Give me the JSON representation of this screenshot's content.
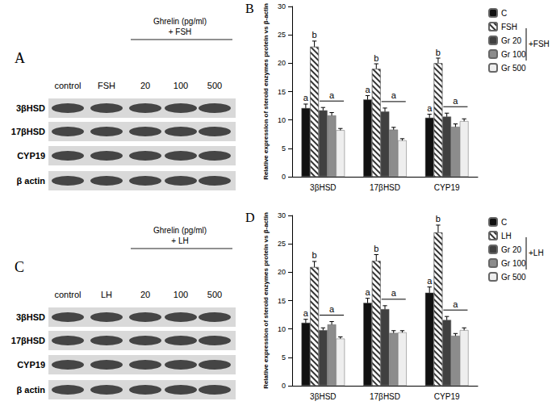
{
  "blots": [
    {
      "label": "A",
      "header": [
        "Ghrelin (pg/ml)",
        "+ FSH"
      ],
      "lanes": [
        "control",
        "FSH",
        "20",
        "100",
        "500"
      ],
      "rows": [
        "3βHSD",
        "17βHSD",
        "CYP19",
        "β actin"
      ]
    },
    {
      "label": "C",
      "header": [
        "Ghrelin (pg/ml)",
        "+ LH"
      ],
      "lanes": [
        "control",
        "LH",
        "20",
        "100",
        "500"
      ],
      "rows": [
        "3βHSD",
        "17βHSD",
        "CYP19",
        "β actin"
      ]
    }
  ],
  "chart_data": [
    {
      "type": "bar",
      "label": "B",
      "y_label": "Relative expression of steroid enzymes protein vs β-actin",
      "categories": [
        "3βHSD",
        "17βHSD",
        "CYP19"
      ],
      "ylim": [
        0,
        30
      ],
      "yticks": [
        0,
        5,
        10,
        15,
        20,
        25,
        30
      ],
      "grid": false,
      "series": [
        {
          "name": "C",
          "color": "#111111",
          "values": [
            12.1,
            13.6,
            10.4
          ],
          "errors": [
            0.7,
            0.7,
            0.6
          ],
          "letter": "a"
        },
        {
          "name": "FSH",
          "color": "#ffffff",
          "marker": "hatch",
          "values": [
            22.9,
            19.0,
            20.0
          ],
          "errors": [
            1.0,
            0.9,
            0.9
          ],
          "letter": "b"
        },
        {
          "name": "Gr 20",
          "color": "#404040",
          "values": [
            11.7,
            11.5,
            10.6
          ],
          "errors": [
            0.5,
            0.6,
            0.6
          ]
        },
        {
          "name": "Gr 100",
          "color": "#8c8c8c",
          "values": [
            10.8,
            8.3,
            8.8
          ],
          "errors": [
            0.5,
            0.4,
            0.5
          ]
        },
        {
          "name": "Gr 500",
          "color": "#eeeeee",
          "values": [
            8.2,
            6.4,
            9.8
          ],
          "errors": [
            0.3,
            0.3,
            0.4
          ]
        }
      ],
      "group_annotation": {
        "text": "a",
        "series": [
          "Gr 20",
          "Gr 100",
          "Gr 500"
        ]
      },
      "legend_group": {
        "text": "+FSH",
        "series": [
          "Gr 20",
          "Gr 100",
          "Gr 500"
        ]
      }
    },
    {
      "type": "bar",
      "label": "D",
      "y_label": "Relative expression of steroid enzymes protein vs β-actin",
      "categories": [
        "3βHSD",
        "17βHSD",
        "CYP19"
      ],
      "ylim": [
        0,
        30
      ],
      "yticks": [
        0,
        5,
        10,
        15,
        20,
        25,
        30
      ],
      "grid": false,
      "series": [
        {
          "name": "C",
          "color": "#111111",
          "values": [
            11.1,
            14.6,
            16.4
          ],
          "errors": [
            0.6,
            0.8,
            1.0
          ],
          "letter": "a"
        },
        {
          "name": "LH",
          "color": "#ffffff",
          "marker": "hatch",
          "values": [
            20.9,
            22.0,
            27.0
          ],
          "errors": [
            1.0,
            1.1,
            1.3
          ],
          "letter": "b"
        },
        {
          "name": "Gr 20",
          "color": "#404040",
          "values": [
            9.8,
            13.5,
            11.6
          ],
          "errors": [
            0.4,
            0.6,
            0.6
          ]
        },
        {
          "name": "Gr 100",
          "color": "#8c8c8c",
          "values": [
            10.8,
            9.3,
            8.8
          ],
          "errors": [
            0.5,
            0.4,
            0.4
          ]
        },
        {
          "name": "Gr 500",
          "color": "#eeeeee",
          "values": [
            8.3,
            9.4,
            9.8
          ],
          "errors": [
            0.3,
            0.3,
            0.4
          ]
        }
      ],
      "group_annotation": {
        "text": "a",
        "series": [
          "Gr 20",
          "Gr 100",
          "Gr 500"
        ]
      },
      "legend_group": {
        "text": "+LH",
        "series": [
          "Gr 20",
          "Gr 100",
          "Gr 500"
        ]
      }
    }
  ]
}
